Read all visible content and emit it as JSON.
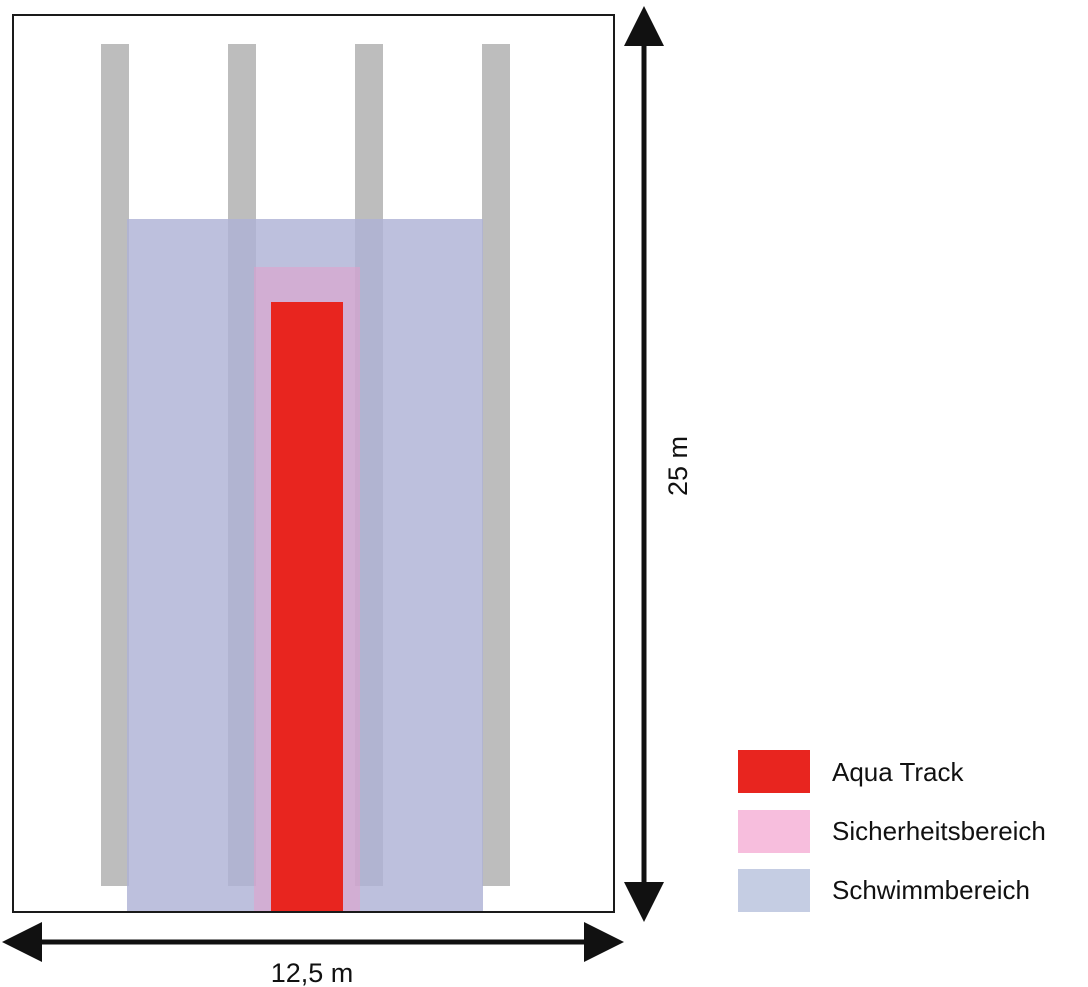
{
  "pool": {
    "width_label": "12,5 m",
    "length_label": "25 m"
  },
  "legend": {
    "items": [
      {
        "label": "Aqua Track",
        "color": "#e8251f"
      },
      {
        "label": "Sicherheitsbereich",
        "color": "#f7bedd"
      },
      {
        "label": "Schwimmbereich",
        "color": "#c5cde3"
      }
    ]
  },
  "colors": {
    "lane_line": "#bdbdbd",
    "swim_area": "#aeb2d6",
    "safety_area": "#d9a3c8",
    "aqua_track": "#e8251f",
    "outline": "#1a1a1a",
    "dimension_arrow": "#111111"
  }
}
